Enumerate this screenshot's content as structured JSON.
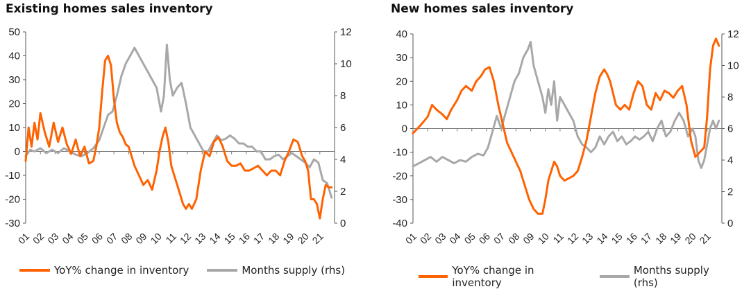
{
  "colors": {
    "orange": "#FF6200",
    "grey": "#A8A8A8"
  },
  "chart_data": [
    {
      "type": "line",
      "title": "Existing homes sales inventory",
      "x_tick_labels": [
        "01",
        "02",
        "03",
        "04",
        "05",
        "06",
        "07",
        "08",
        "09",
        "10",
        "11",
        "12",
        "13",
        "14",
        "15",
        "16",
        "17",
        "18",
        "19",
        "20",
        "21"
      ],
      "x_range": [
        2001.0,
        2022.0
      ],
      "y_left": {
        "range": [
          -30,
          50
        ],
        "ticks": [
          50,
          40,
          30,
          20,
          10,
          0,
          -10,
          -20,
          -30
        ]
      },
      "y_right": {
        "range": [
          0,
          12
        ],
        "ticks": [
          12,
          10,
          8,
          6,
          4,
          2,
          0
        ]
      },
      "legend": {
        "placement": "bottom",
        "entries": [
          "YoY% change in inventory",
          "Months supply (rhs)"
        ]
      },
      "series": [
        {
          "name": "YoY% change in inventory",
          "axis": "left",
          "color": "#FF6200",
          "x": [
            2001.0,
            2001.2,
            2001.4,
            2001.6,
            2001.8,
            2002.0,
            2002.3,
            2002.6,
            2002.9,
            2003.2,
            2003.5,
            2003.8,
            2004.1,
            2004.4,
            2004.7,
            2005.0,
            2005.3,
            2005.6,
            2005.8,
            2006.0,
            2006.2,
            2006.4,
            2006.6,
            2006.8,
            2007.0,
            2007.2,
            2007.4,
            2007.6,
            2007.8,
            2008.0,
            2008.2,
            2008.4,
            2008.7,
            2009.0,
            2009.3,
            2009.6,
            2009.9,
            2010.1,
            2010.3,
            2010.5,
            2010.7,
            2010.9,
            2011.1,
            2011.3,
            2011.5,
            2011.7,
            2011.9,
            2012.1,
            2012.3,
            2012.6,
            2012.9,
            2013.2,
            2013.5,
            2013.8,
            2014.1,
            2014.4,
            2014.7,
            2015.0,
            2015.3,
            2015.6,
            2015.9,
            2016.2,
            2016.5,
            2016.8,
            2017.1,
            2017.4,
            2017.7,
            2018.0,
            2018.3,
            2018.6,
            2018.9,
            2019.2,
            2019.5,
            2019.8,
            2020.0,
            2020.2,
            2020.4,
            2020.6,
            2020.8,
            2021.0,
            2021.2,
            2021.4,
            2021.6,
            2021.8
          ],
          "values": [
            -4,
            10,
            2,
            12,
            5,
            16,
            8,
            2,
            12,
            4,
            10,
            3,
            -1,
            5,
            -2,
            2,
            -5,
            -4,
            2,
            10,
            25,
            38,
            40,
            36,
            22,
            12,
            8,
            6,
            3,
            2,
            -2,
            -6,
            -10,
            -14,
            -12,
            -16,
            -8,
            0,
            6,
            10,
            4,
            -6,
            -10,
            -14,
            -18,
            -22,
            -24,
            -22,
            -24,
            -20,
            -8,
            0,
            -2,
            4,
            6,
            2,
            -4,
            -6,
            -6,
            -5,
            -8,
            -8,
            -7,
            -6,
            -8,
            -10,
            -8,
            -8,
            -10,
            -4,
            0,
            5,
            4,
            -2,
            -4,
            -8,
            -20,
            -20,
            -22,
            -28,
            -20,
            -14,
            -15,
            -15
          ]
        },
        {
          "name": "Months supply (rhs)",
          "axis": "right",
          "color": "#A8A8A8",
          "x": [
            2001.0,
            2001.3,
            2001.6,
            2002.0,
            2002.4,
            2002.8,
            2003.2,
            2003.6,
            2004.0,
            2004.4,
            2004.8,
            2005.2,
            2005.6,
            2006.0,
            2006.3,
            2006.6,
            2006.9,
            2007.2,
            2007.5,
            2007.8,
            2008.1,
            2008.4,
            2008.7,
            2009.0,
            2009.3,
            2009.6,
            2009.9,
            2010.2,
            2010.4,
            2010.6,
            2010.8,
            2011.0,
            2011.3,
            2011.6,
            2011.9,
            2012.2,
            2012.5,
            2012.8,
            2013.1,
            2013.4,
            2013.7,
            2014.0,
            2014.3,
            2014.6,
            2014.9,
            2015.2,
            2015.5,
            2015.8,
            2016.1,
            2016.4,
            2016.7,
            2017.0,
            2017.3,
            2017.6,
            2017.9,
            2018.2,
            2018.5,
            2018.8,
            2019.1,
            2019.4,
            2019.7,
            2020.0,
            2020.3,
            2020.6,
            2020.9,
            2021.2,
            2021.5,
            2021.8
          ],
          "values": [
            4.2,
            4.6,
            4.5,
            4.7,
            4.4,
            4.6,
            4.4,
            4.7,
            4.5,
            4.3,
            4.2,
            4.4,
            4.7,
            5.2,
            6.0,
            6.8,
            7.0,
            8.0,
            9.2,
            10.0,
            10.5,
            11.0,
            10.5,
            10.0,
            9.5,
            9.0,
            8.5,
            7.0,
            8.0,
            11.2,
            9.0,
            8.0,
            8.5,
            8.8,
            7.5,
            6.0,
            5.5,
            5.0,
            4.5,
            4.5,
            5.0,
            5.5,
            5.2,
            5.3,
            5.5,
            5.3,
            5.0,
            5.0,
            4.8,
            4.8,
            4.5,
            4.5,
            4.0,
            4.0,
            4.2,
            4.3,
            4.0,
            4.2,
            4.4,
            4.2,
            4.0,
            3.8,
            3.5,
            4.0,
            3.8,
            2.7,
            2.5,
            1.6
          ]
        }
      ]
    },
    {
      "type": "line",
      "title": "New homes sales inventory",
      "x_tick_labels": [
        "01",
        "02",
        "03",
        "04",
        "05",
        "06",
        "07",
        "08",
        "09",
        "10",
        "11",
        "12",
        "13",
        "14",
        "15",
        "16",
        "17",
        "18",
        "19",
        "20",
        "21"
      ],
      "x_range": [
        2001.0,
        2022.0
      ],
      "y_left": {
        "range": [
          -40,
          40
        ],
        "ticks": [
          40,
          30,
          20,
          10,
          0,
          -10,
          -20,
          -30,
          -40
        ]
      },
      "y_right": {
        "range": [
          0,
          12
        ],
        "ticks": [
          12,
          10,
          8,
          6,
          4,
          2,
          0
        ]
      },
      "legend": {
        "placement": "bottom",
        "entries": [
          "YoY% change in inventory",
          "Months supply (rhs)"
        ]
      },
      "series": [
        {
          "name": "YoY% change in inventory",
          "axis": "left",
          "color": "#FF6200",
          "x": [
            2001.0,
            2001.3,
            2001.6,
            2002.0,
            2002.3,
            2002.6,
            2003.0,
            2003.3,
            2003.6,
            2004.0,
            2004.3,
            2004.6,
            2005.0,
            2005.3,
            2005.6,
            2005.9,
            2006.2,
            2006.5,
            2006.8,
            2007.1,
            2007.4,
            2007.7,
            2008.0,
            2008.3,
            2008.6,
            2008.9,
            2009.2,
            2009.5,
            2009.8,
            2010.0,
            2010.2,
            2010.4,
            2010.6,
            2010.8,
            2011.0,
            2011.3,
            2011.6,
            2011.9,
            2012.2,
            2012.5,
            2012.8,
            2013.1,
            2013.4,
            2013.7,
            2014.0,
            2014.2,
            2014.4,
            2014.6,
            2014.8,
            2015.1,
            2015.4,
            2015.7,
            2016.0,
            2016.3,
            2016.6,
            2016.9,
            2017.2,
            2017.5,
            2017.8,
            2018.1,
            2018.4,
            2018.7,
            2019.0,
            2019.3,
            2019.6,
            2019.9,
            2020.2,
            2020.5,
            2020.8,
            2021.0,
            2021.2,
            2021.4,
            2021.6,
            2021.8
          ],
          "values": [
            -2,
            0,
            2,
            5,
            10,
            8,
            6,
            4,
            8,
            12,
            16,
            18,
            16,
            20,
            22,
            25,
            26,
            20,
            10,
            2,
            -6,
            -10,
            -14,
            -18,
            -24,
            -30,
            -34,
            -36,
            -36,
            -30,
            -22,
            -18,
            -14,
            -16,
            -20,
            -22,
            -21,
            -20,
            -18,
            -12,
            -5,
            5,
            15,
            22,
            25,
            23,
            20,
            15,
            10,
            8,
            10,
            8,
            15,
            20,
            18,
            10,
            8,
            15,
            12,
            16,
            15,
            13,
            16,
            18,
            10,
            -5,
            -12,
            -10,
            -8,
            5,
            25,
            35,
            38,
            35
          ]
        },
        {
          "name": "Months supply (rhs)",
          "axis": "right",
          "color": "#A8A8A8",
          "x": [
            2001.0,
            2001.4,
            2001.8,
            2002.2,
            2002.6,
            2003.0,
            2003.4,
            2003.8,
            2004.2,
            2004.6,
            2005.0,
            2005.4,
            2005.8,
            2006.1,
            2006.4,
            2006.7,
            2007.0,
            2007.3,
            2007.6,
            2007.9,
            2008.2,
            2008.5,
            2008.8,
            2009.0,
            2009.2,
            2009.5,
            2009.8,
            2010.0,
            2010.2,
            2010.4,
            2010.6,
            2010.8,
            2011.0,
            2011.3,
            2011.6,
            2011.9,
            2012.2,
            2012.5,
            2012.8,
            2013.1,
            2013.4,
            2013.7,
            2014.0,
            2014.3,
            2014.6,
            2014.9,
            2015.2,
            2015.5,
            2015.8,
            2016.1,
            2016.4,
            2016.7,
            2017.0,
            2017.3,
            2017.6,
            2017.9,
            2018.2,
            2018.5,
            2018.8,
            2019.1,
            2019.4,
            2019.7,
            2020.0,
            2020.2,
            2020.4,
            2020.6,
            2020.8,
            2021.0,
            2021.2,
            2021.4,
            2021.6,
            2021.8
          ],
          "values": [
            3.6,
            3.8,
            4.0,
            4.2,
            3.9,
            4.2,
            4.0,
            3.8,
            4.0,
            3.9,
            4.2,
            4.4,
            4.3,
            4.8,
            5.8,
            6.8,
            6.0,
            7.0,
            8.0,
            9.0,
            9.5,
            10.5,
            11.0,
            11.5,
            10.0,
            9.0,
            8.0,
            7.0,
            8.5,
            7.5,
            9.0,
            6.5,
            8.0,
            7.5,
            7.0,
            6.5,
            5.5,
            5.0,
            4.8,
            4.5,
            4.8,
            5.5,
            5.0,
            5.5,
            5.8,
            5.2,
            5.5,
            5.0,
            5.2,
            5.5,
            5.3,
            5.5,
            5.8,
            5.2,
            6.0,
            6.5,
            5.5,
            5.8,
            6.5,
            7.0,
            6.5,
            5.5,
            6.0,
            5.5,
            4.0,
            3.5,
            4.0,
            5.0,
            6.0,
            6.5,
            6.0,
            6.5
          ]
        }
      ]
    }
  ]
}
